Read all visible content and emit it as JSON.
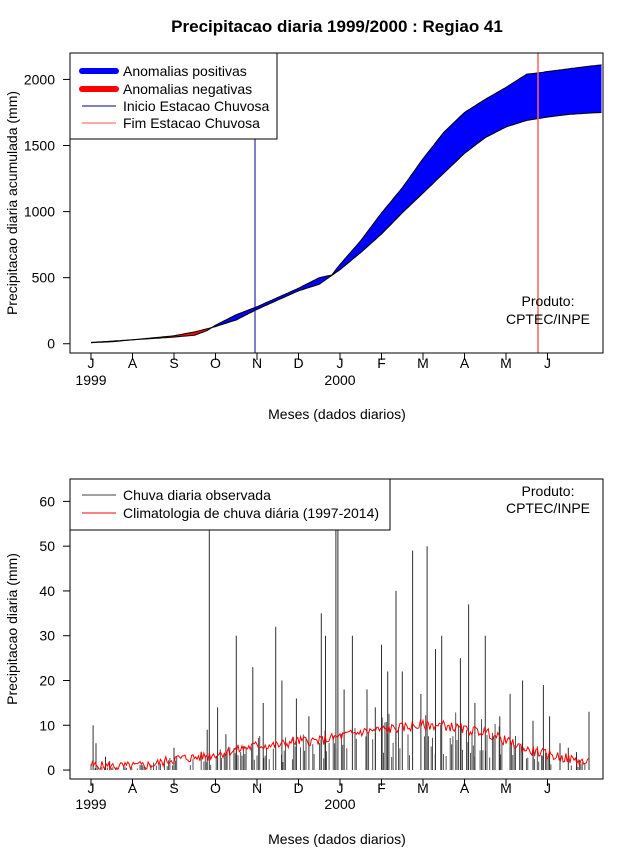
{
  "chart_data": [
    {
      "type": "area",
      "title": "Precipitacao diaria 1999/2000 : Regiao 41",
      "xlabel": "Meses (dados diarios)",
      "ylabel": "Precipitacao diaria acumulada (mm)",
      "ylim": [
        -70,
        2200
      ],
      "yticks": [
        0,
        500,
        1000,
        1500,
        2000
      ],
      "month_labels": [
        "J",
        "A",
        "S",
        "O",
        "N",
        "D",
        "J",
        "F",
        "M",
        "A",
        "M",
        "J"
      ],
      "year_labels": [
        {
          "label": "1999",
          "month_index": 0
        },
        {
          "label": "2000",
          "month_index": 6
        }
      ],
      "legend": {
        "position": "top-left",
        "items": [
          {
            "label": "Anomalias positivas",
            "color": "#0000ff",
            "style": "thick"
          },
          {
            "label": "Anomalias negativas",
            "color": "#ff0000",
            "style": "thick"
          },
          {
            "label": "Inicio Estacao Chuvosa",
            "color": "#00008b",
            "style": "thin"
          },
          {
            "label": "Fim Estacao Chuvosa",
            "color": "#ff5050",
            "style": "thin"
          }
        ]
      },
      "product_note": [
        "Produto:",
        "CPTEC/INPE"
      ],
      "vertical_lines": {
        "inicio_month": 4.0,
        "fim_month": 10.85
      },
      "climatology_cumulative": {
        "x_month": [
          0.0,
          0.5,
          1.0,
          1.5,
          2.0,
          2.5,
          3.0,
          3.5,
          4.0,
          4.5,
          5.0,
          5.5,
          6.0,
          6.5,
          7.0,
          7.5,
          8.0,
          8.5,
          9.0,
          9.5,
          10.0,
          10.5,
          11.0,
          11.5,
          12.0,
          12.3
        ],
        "y": [
          10,
          20,
          30,
          45,
          60,
          90,
          130,
          180,
          260,
          330,
          400,
          450,
          560,
          690,
          830,
          990,
          1140,
          1290,
          1440,
          1560,
          1640,
          1690,
          1715,
          1735,
          1745,
          1750
        ]
      },
      "observed_cumulative": {
        "x_month": [
          0.0,
          0.5,
          1.0,
          1.5,
          2.0,
          2.5,
          2.8,
          3.0,
          3.5,
          4.0,
          4.5,
          5.0,
          5.5,
          5.8,
          6.0,
          6.5,
          7.0,
          7.5,
          8.0,
          8.5,
          9.0,
          9.5,
          10.0,
          10.5,
          10.8,
          11.0,
          11.5,
          12.0,
          12.3
        ],
        "y": [
          8,
          15,
          30,
          40,
          50,
          65,
          100,
          140,
          220,
          280,
          350,
          420,
          500,
          520,
          600,
          780,
          990,
          1180,
          1400,
          1600,
          1750,
          1850,
          1940,
          2040,
          2050,
          2060,
          2080,
          2100,
          2110
        ]
      }
    },
    {
      "type": "bar",
      "xlabel": "Meses (dados diarios)",
      "ylabel": "Precipitacao diaria (mm)",
      "ylim": [
        -2,
        65
      ],
      "yticks": [
        0,
        10,
        20,
        30,
        40,
        50,
        60
      ],
      "month_labels": [
        "J",
        "A",
        "S",
        "O",
        "N",
        "D",
        "J",
        "F",
        "M",
        "A",
        "M",
        "J"
      ],
      "year_labels": [
        {
          "label": "1999",
          "month_index": 0
        },
        {
          "label": "2000",
          "month_index": 6
        }
      ],
      "legend": {
        "position": "top-left",
        "items": [
          {
            "label": "Chuva diaria observada",
            "color": "#404040"
          },
          {
            "label": "Climatologia de chuva diária (1997-2014)",
            "color": "#ff0000"
          }
        ]
      },
      "product_note": [
        "Produto:",
        "CPTEC/INPE"
      ],
      "daily_peaks": {
        "x_month": [
          0.05,
          0.12,
          0.35,
          0.45,
          2.0,
          2.8,
          2.85,
          3.05,
          3.25,
          3.5,
          3.9,
          4.15,
          4.45,
          4.6,
          4.95,
          5.25,
          5.55,
          5.65,
          5.9,
          5.95,
          6.1,
          6.3,
          6.65,
          6.85,
          7.0,
          7.15,
          7.35,
          7.5,
          7.75,
          7.95,
          8.1,
          8.3,
          8.45,
          8.9,
          9.1,
          9.25,
          9.5,
          9.85,
          10.1,
          10.4,
          10.65,
          10.9,
          11.05,
          11.3,
          11.5,
          11.7,
          12.0
        ],
        "y": [
          10,
          6,
          3,
          2,
          5,
          9,
          55,
          14,
          8,
          30,
          23,
          15,
          32,
          20,
          16,
          12,
          35,
          30,
          58,
          55,
          18,
          30,
          18,
          14,
          28,
          22,
          40,
          22,
          49,
          17,
          50,
          27,
          30,
          25,
          37,
          15,
          30,
          12,
          17,
          20,
          11,
          19,
          12,
          6,
          5,
          4,
          13
        ]
      },
      "climatology_daily": {
        "x_month": [
          0.0,
          0.5,
          1.0,
          1.5,
          2.0,
          2.5,
          3.0,
          3.5,
          4.0,
          4.5,
          5.0,
          5.5,
          6.0,
          6.5,
          7.0,
          7.5,
          8.0,
          8.5,
          9.0,
          9.5,
          10.0,
          10.5,
          11.0,
          11.5,
          12.0
        ],
        "y": [
          1,
          0.8,
          0.8,
          1.2,
          2.5,
          2.8,
          3.5,
          4.5,
          5.5,
          5.5,
          6.5,
          6.5,
          7.5,
          8.5,
          9.0,
          9.5,
          10.0,
          10.0,
          9.0,
          8.5,
          6.5,
          4.5,
          3.5,
          2.5,
          1.5
        ]
      }
    }
  ]
}
